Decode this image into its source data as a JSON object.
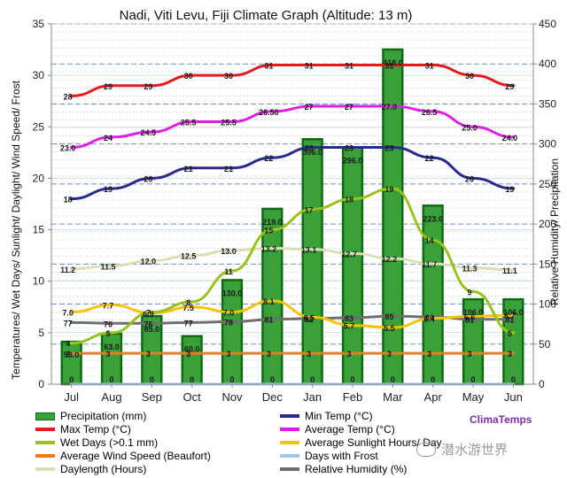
{
  "chart_data": {
    "type": "bar",
    "title": "Nadi, Viti Levu, Fiji Climate Graph (Altitude: 13 m)",
    "ylabel": "Temperatures/ Wet Days/ Sunlight/ Daylight/ Wind Speed/ Frost",
    "y2label": "Relative Humidity/ Precipitation",
    "ylim": [
      0,
      35
    ],
    "y2lim": [
      0,
      450
    ],
    "yticks": [
      0,
      5,
      10,
      15,
      20,
      25,
      30,
      35
    ],
    "y2ticks": [
      0,
      50,
      100,
      150,
      200,
      250,
      300,
      350,
      400,
      450
    ],
    "categories": [
      "Jul",
      "Aug",
      "Sep",
      "Oct",
      "Nov",
      "Dec",
      "Jan",
      "Feb",
      "Mar",
      "Apr",
      "May",
      "Jun"
    ],
    "precipitation": {
      "name": "Precipitation (mm)",
      "axis": "right",
      "color": "#3aa13a",
      "values": [
        53.0,
        63.0,
        85.0,
        60.0,
        130.0,
        219.0,
        306.0,
        296.0,
        418.0,
        223.0,
        106.0,
        106.0
      ],
      "labels": [
        "53.0",
        "63.0",
        "85.0",
        "60.0",
        "130.0",
        "219.0",
        "306.0",
        "296.0",
        "418.0",
        "223.0",
        "106.0",
        "106.0"
      ]
    },
    "series": [
      {
        "name": "Max Temp (°C)",
        "axis": "left",
        "color": "#e41a1c",
        "values": [
          28,
          29,
          29,
          30,
          30,
          31,
          31,
          31,
          31,
          31,
          30,
          29
        ],
        "labels": [
          "28",
          "29",
          "29",
          "30",
          "30",
          "31",
          "31",
          "31",
          "31",
          "31",
          "30",
          "29"
        ]
      },
      {
        "name": "Average Temp (°C)",
        "axis": "left",
        "color": "#e020e0",
        "values": [
          23.0,
          24,
          24.5,
          25.5,
          25.5,
          26.5,
          27,
          27,
          27.0,
          26.5,
          25.0,
          24.0
        ],
        "labels": [
          "23.0",
          "24",
          "24.5",
          "25.5",
          "25.5",
          "26.50",
          "27",
          "27",
          "27.0",
          "26.5",
          "25.0",
          "24.0"
        ]
      },
      {
        "name": "Min Temp (°C)",
        "axis": "left",
        "color": "#2a2a8a",
        "values": [
          18,
          19,
          20,
          21,
          21,
          22,
          23,
          23,
          23,
          22,
          20,
          19
        ],
        "labels": [
          "18",
          "19",
          "20",
          "21",
          "21",
          "22",
          "23",
          "23",
          "23",
          "22",
          "20",
          "19"
        ]
      },
      {
        "name": "Wet Days (>0.1 mm)",
        "axis": "left",
        "color": "#99c21a",
        "values": [
          4,
          5,
          7,
          8,
          11,
          15,
          17,
          18,
          19,
          14,
          9,
          5
        ],
        "labels": [
          "4",
          "5",
          "7",
          "8",
          "11",
          "15",
          "17",
          "18",
          "19",
          "14",
          "9",
          "5"
        ]
      },
      {
        "name": "Average Sunlight Hours/ Day",
        "axis": "left",
        "color": "#f5c400",
        "values": [
          7.0,
          7.7,
          6.9,
          7.5,
          7.0,
          8.1,
          6.5,
          5.7,
          5.5,
          6.4,
          6.6,
          6.7
        ],
        "labels": [
          "7.0",
          "7.7",
          "6.9",
          "7.5",
          "7.0",
          "8.1",
          "6.5",
          "5.7",
          "5.5",
          "6.4",
          "6.6",
          "6.7"
        ]
      },
      {
        "name": "Daylength (Hours)",
        "axis": "left",
        "color": "#d8dfb0",
        "values": [
          11.2,
          11.5,
          12.0,
          12.5,
          13.0,
          13.2,
          13.1,
          12.7,
          12.2,
          11.7,
          11.3,
          11.1
        ],
        "labels": [
          "11.2",
          "11.5",
          "12.0",
          "12.5",
          "13.0",
          "13.2",
          "13.1",
          "12.7",
          "12.2",
          "11.7",
          "11.3",
          "11.1"
        ]
      },
      {
        "name": "Relative Humidity (%)",
        "axis": "right",
        "color": "#6e6e6e",
        "values": [
          77,
          76,
          76,
          77,
          78,
          81,
          82,
          83,
          85,
          84,
          81,
          81
        ],
        "labels": [
          "77",
          "76",
          "76",
          "77",
          "78",
          "81",
          "82",
          "83",
          "85",
          "84",
          "81",
          "81"
        ]
      },
      {
        "name": "Average Wind Speed (Beaufort)",
        "axis": "left",
        "color": "#f07a1c",
        "values": [
          3,
          3,
          3,
          3,
          3,
          3,
          3,
          3,
          3,
          3,
          3,
          3
        ],
        "labels": [
          "3",
          "3",
          "3",
          "3",
          "3",
          "3",
          "3",
          "3",
          "3",
          "3",
          "3",
          "3"
        ]
      },
      {
        "name": "Days with Frost",
        "axis": "left",
        "color": "#9fc8e8",
        "values": [
          0,
          0,
          0,
          0,
          0,
          0,
          0,
          0,
          0,
          0,
          0,
          0
        ],
        "labels": [
          "0",
          "0",
          "0",
          "0",
          "0",
          "0",
          "0",
          "0",
          "0",
          "0",
          "0",
          "0"
        ]
      }
    ],
    "legend": [
      "Precipitation (mm)",
      "Min Temp (°C)",
      "Max Temp (°C)",
      "Average Temp (°C)",
      "Wet Days (>0.1 mm)",
      "Average Sunlight Hours/ Day",
      "Average Wind Speed (Beaufort)",
      "Days with Frost",
      "Daylength (Hours)",
      "Relative Humidity (%)"
    ],
    "grid": true,
    "legend_position": "bottom"
  },
  "brand": "ClimaTemps",
  "watermark": "潜水游世界"
}
